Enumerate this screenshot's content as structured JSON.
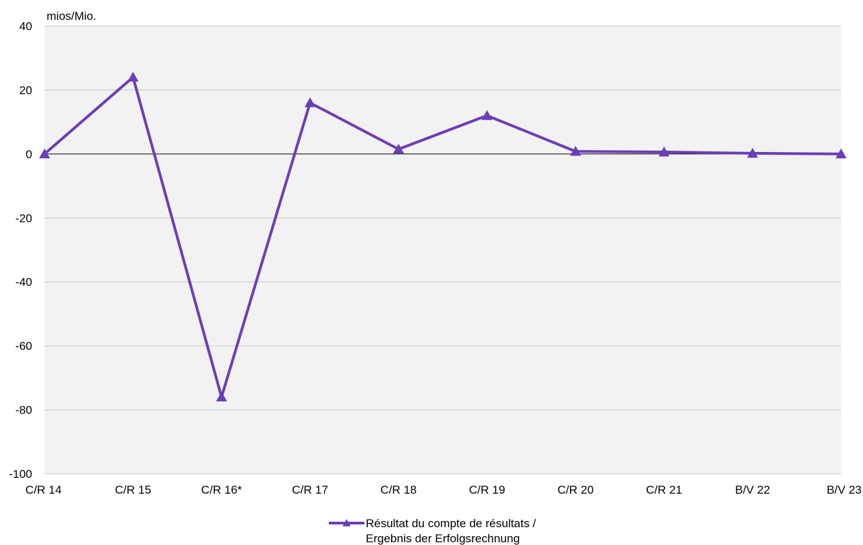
{
  "chart_data": {
    "type": "line",
    "unit_label": "mios/Mio.",
    "categories": [
      "C/R 14",
      "C/R 15",
      "C/R 16*",
      "C/R 17",
      "C/R 18",
      "C/R 19",
      "C/R 20",
      "C/R 21",
      "B/V 22",
      "B/V 23"
    ],
    "series": [
      {
        "name_lines": [
          "Résultat du compte de résultats /",
          "Ergebnis der Erfolgsrechnung"
        ],
        "values": [
          0,
          24,
          -76,
          16,
          1.5,
          12,
          0.8,
          0.6,
          0.2,
          0
        ],
        "color": "#6a3fb5",
        "marker": "triangle"
      }
    ],
    "ylim": [
      -100,
      40
    ],
    "yticks": [
      -100,
      -80,
      -60,
      -40,
      -20,
      0,
      20,
      40
    ],
    "grid": true,
    "legend_position": "bottom-center",
    "plot_background": "#f2f2f2",
    "gridline_color": "#c8c8c8",
    "zero_line_color": "#000000"
  }
}
